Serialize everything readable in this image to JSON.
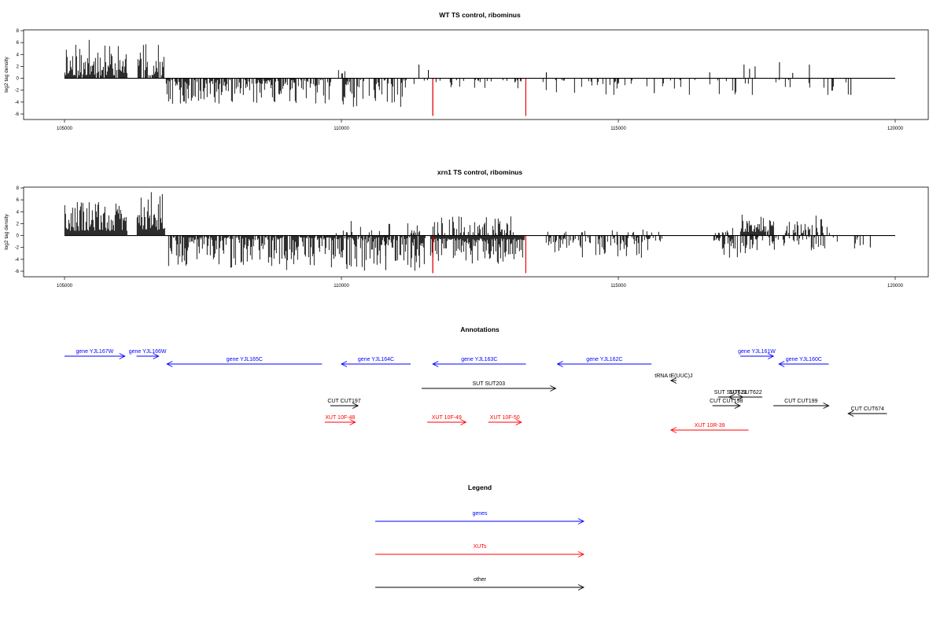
{
  "colors": {
    "blue": "#0000ff",
    "red": "#ff0000",
    "black": "#000000",
    "bars": "#000000"
  },
  "chart_data": [
    {
      "type": "bar",
      "title": "WT TS control, ribominus",
      "ylabel": "log2 tag density",
      "xlim": [
        105000,
        120000
      ],
      "ylim": [
        -6,
        8
      ],
      "x_ticks": [
        "105000",
        "110000",
        "115000",
        "120000"
      ],
      "y_ticks": [
        "8",
        "6",
        "4",
        "2",
        "0",
        "-2",
        "-4",
        "-6"
      ],
      "grid": false,
      "markers": [
        {
          "x": 111650,
          "color": "red"
        },
        {
          "x": 113330,
          "color": "red"
        }
      ],
      "seed": 11,
      "regions": [
        {
          "from": 105000,
          "to": 106120,
          "sign": 1,
          "density": 0.9,
          "min": 0.5,
          "max": 6.5
        },
        {
          "from": 106320,
          "to": 106800,
          "sign": 1,
          "density": 0.7,
          "min": 0.5,
          "max": 5.8
        },
        {
          "from": 106830,
          "to": 109800,
          "sign": -1,
          "density": 0.7,
          "min": 0.3,
          "max": 4.3
        },
        {
          "from": 109950,
          "to": 110050,
          "sign": 1,
          "density": 0.6,
          "min": 0.5,
          "max": 1.6
        },
        {
          "from": 110000,
          "to": 111200,
          "sign": -1,
          "density": 0.55,
          "min": 0.3,
          "max": 4.8
        },
        {
          "from": 111300,
          "to": 113300,
          "sign": -1,
          "density": 0.25,
          "min": 0.3,
          "max": 1.8
        },
        {
          "from": 113600,
          "to": 115000,
          "sign": -1,
          "density": 0.2,
          "min": 0.3,
          "max": 2.8
        },
        {
          "from": 115000,
          "to": 119300,
          "sign": -1,
          "density": 0.1,
          "min": 0.3,
          "max": 2.8
        }
      ],
      "spikes": [
        {
          "x": 111400,
          "y": 2.3
        },
        {
          "x": 111570,
          "y": 1.4
        },
        {
          "x": 111650,
          "y": -6.3
        },
        {
          "x": 113330,
          "y": -6.3
        },
        {
          "x": 113700,
          "y": 1.0
        },
        {
          "x": 116650,
          "y": 1.0
        },
        {
          "x": 117270,
          "y": 2.3
        },
        {
          "x": 117370,
          "y": 1.6
        },
        {
          "x": 117470,
          "y": 2.0
        },
        {
          "x": 117910,
          "y": 2.7
        },
        {
          "x": 118150,
          "y": 0.9
        },
        {
          "x": 118450,
          "y": 2.3
        },
        {
          "x": 119200,
          "y": -2.8
        },
        {
          "x": 115650,
          "y": -2.5
        }
      ]
    },
    {
      "type": "bar",
      "title": "xrn1 TS control, ribominus",
      "ylabel": "log2 tag density",
      "xlim": [
        105000,
        120000
      ],
      "ylim": [
        -6,
        8
      ],
      "x_ticks": [
        "105000",
        "110000",
        "115000",
        "120000"
      ],
      "y_ticks": [
        "8",
        "6",
        "4",
        "2",
        "0",
        "-2",
        "-4",
        "-6"
      ],
      "grid": false,
      "markers": [
        {
          "x": 111650,
          "color": "red"
        },
        {
          "x": 113330,
          "color": "red"
        }
      ],
      "seed": 29,
      "regions": [
        {
          "from": 105000,
          "to": 106120,
          "sign": 1,
          "density": 1.0,
          "min": 0.8,
          "max": 6.0
        },
        {
          "from": 106300,
          "to": 106800,
          "sign": 1,
          "density": 1.0,
          "min": 0.8,
          "max": 7.5
        },
        {
          "from": 106850,
          "to": 109700,
          "sign": -1,
          "density": 0.85,
          "min": 0.3,
          "max": 5.8
        },
        {
          "from": 109700,
          "to": 111500,
          "sign": -1,
          "density": 0.85,
          "min": 0.3,
          "max": 6.0
        },
        {
          "from": 109800,
          "to": 111400,
          "sign": 1,
          "density": 0.15,
          "min": 0.4,
          "max": 2.5
        },
        {
          "from": 111600,
          "to": 113300,
          "sign": -1,
          "density": 1.0,
          "min": 0.5,
          "max": 4.8
        },
        {
          "from": 111650,
          "to": 113100,
          "sign": 1,
          "density": 0.45,
          "min": 0.4,
          "max": 3.3
        },
        {
          "from": 113700,
          "to": 115800,
          "sign": -1,
          "density": 0.5,
          "min": 0.3,
          "max": 3.8
        },
        {
          "from": 113700,
          "to": 115800,
          "sign": 1,
          "density": 0.12,
          "min": 0.4,
          "max": 1.3
        },
        {
          "from": 116700,
          "to": 117150,
          "sign": -1,
          "density": 0.8,
          "min": 0.3,
          "max": 4.0
        },
        {
          "from": 116700,
          "to": 117100,
          "sign": 1,
          "density": 0.3,
          "min": 0.4,
          "max": 1.5
        },
        {
          "from": 117200,
          "to": 117800,
          "sign": 1,
          "density": 0.9,
          "min": 0.6,
          "max": 3.8
        },
        {
          "from": 117200,
          "to": 117800,
          "sign": -1,
          "density": 0.5,
          "min": 0.3,
          "max": 3.0
        },
        {
          "from": 117800,
          "to": 118800,
          "sign": -1,
          "density": 0.4,
          "min": 0.3,
          "max": 2.6
        },
        {
          "from": 118000,
          "to": 118800,
          "sign": 1,
          "density": 0.5,
          "min": 0.4,
          "max": 3.5
        },
        {
          "from": 118800,
          "to": 119700,
          "sign": -1,
          "density": 0.12,
          "min": 0.3,
          "max": 2.5
        }
      ],
      "spikes": [
        {
          "x": 111650,
          "y": -6.3
        },
        {
          "x": 113330,
          "y": -6.3
        },
        {
          "x": 110100,
          "y": -5.6
        },
        {
          "x": 110800,
          "y": -5.8
        },
        {
          "x": 119550,
          "y": -2.0
        }
      ]
    }
  ],
  "annotations": {
    "title": "Annotations",
    "items": [
      {
        "label": "gene YJL167W",
        "x1": 105000,
        "x2": 106090,
        "row": 0,
        "kind": "gene",
        "labelPos": "center"
      },
      {
        "label": "gene YJL166W",
        "x1": 106300,
        "x2": 106700,
        "row": 0,
        "kind": "gene",
        "labelPos": "center"
      },
      {
        "label": "gene YJL165C",
        "x1": 109650,
        "x2": 106850,
        "row": 1,
        "kind": "gene",
        "labelPos": "center"
      },
      {
        "label": "gene YJL164C",
        "x1": 111250,
        "x2": 110000,
        "row": 1,
        "kind": "gene",
        "labelPos": "center"
      },
      {
        "label": "gene YJL163C",
        "x1": 113330,
        "x2": 111650,
        "row": 1,
        "kind": "gene",
        "labelPos": "center"
      },
      {
        "label": "gene YJL162C",
        "x1": 115600,
        "x2": 113900,
        "row": 1,
        "kind": "gene",
        "labelPos": "center"
      },
      {
        "label": "gene YJL161W",
        "x1": 117200,
        "x2": 117800,
        "row": 0,
        "kind": "gene",
        "labelPos": "center"
      },
      {
        "label": "gene YJL160C",
        "x1": 118800,
        "x2": 117900,
        "row": 1,
        "kind": "gene",
        "labelPos": "center"
      },
      {
        "label": "tRNA tE(UUC)J",
        "x1": 116050,
        "x2": 115950,
        "row": 2,
        "kind": "other",
        "labelPos": "center"
      },
      {
        "label": "SUT SUT203",
        "x1": 111450,
        "x2": 113870,
        "row": 3,
        "kind": "other",
        "labelPos": "center"
      },
      {
        "label": "SUT SUT621",
        "x1": 116800,
        "x2": 117250,
        "row": 4,
        "kind": "other",
        "labelPos": "center"
      },
      {
        "label": "SUT SUT622",
        "x1": 117600,
        "x2": 117000,
        "row": 4,
        "kind": "other",
        "labelPos": "center"
      },
      {
        "label": "CUT CUT197",
        "x1": 109800,
        "x2": 110300,
        "row": 5,
        "kind": "other",
        "labelPos": "center"
      },
      {
        "label": "CUT CUT198",
        "x1": 116700,
        "x2": 117200,
        "row": 5,
        "kind": "other",
        "labelPos": "center"
      },
      {
        "label": "CUT CUT199",
        "x1": 117800,
        "x2": 118800,
        "row": 5,
        "kind": "other",
        "labelPos": "center"
      },
      {
        "label": "CUT CUT674",
        "x1": 119850,
        "x2": 119150,
        "row": 6,
        "kind": "other",
        "labelPos": "center"
      },
      {
        "label": "XUT 10F-48",
        "x1": 109700,
        "x2": 110250,
        "row": 7,
        "kind": "xut",
        "labelPos": "center"
      },
      {
        "label": "XUT 10F-49",
        "x1": 111550,
        "x2": 112250,
        "row": 7,
        "kind": "xut",
        "labelPos": "center"
      },
      {
        "label": "XUT 10F-50",
        "x1": 112650,
        "x2": 113250,
        "row": 7,
        "kind": "xut",
        "labelPos": "center"
      },
      {
        "label": "XUT 10R-39",
        "x1": 117350,
        "x2": 115950,
        "row": 8,
        "kind": "xut",
        "labelPos": "center"
      }
    ]
  },
  "legend": {
    "title": "Legend",
    "items": [
      {
        "label": "genes",
        "kind": "gene"
      },
      {
        "label": "XUTs",
        "kind": "xut"
      },
      {
        "label": "other",
        "kind": "other"
      }
    ]
  }
}
